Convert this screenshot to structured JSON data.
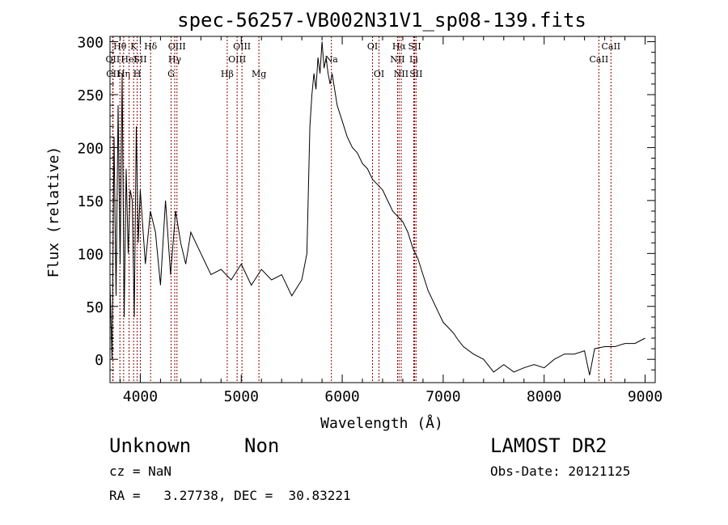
{
  "chart_data": {
    "type": "line",
    "title": "spec-56257-VB002N31V1_sp08-139.fits",
    "xlabel": "Wavelength (Å)",
    "ylabel": "Flux (relative)",
    "xlim": [
      3700,
      9100
    ],
    "ylim": [
      -22,
      305
    ],
    "xticks": [
      4000,
      5000,
      6000,
      7000,
      8000,
      9000
    ],
    "yticks": [
      0,
      50,
      100,
      150,
      200,
      250,
      300
    ],
    "grid": false,
    "line_color": "#000000",
    "marker_color": "#8b0000",
    "spectrum": {
      "x": [
        3700,
        3720,
        3740,
        3760,
        3780,
        3800,
        3820,
        3840,
        3860,
        3880,
        3900,
        3920,
        3940,
        3960,
        3980,
        4000,
        4050,
        4100,
        4150,
        4200,
        4250,
        4300,
        4350,
        4400,
        4450,
        4500,
        4600,
        4700,
        4800,
        4900,
        5000,
        5100,
        5200,
        5300,
        5400,
        5500,
        5600,
        5650,
        5680,
        5700,
        5720,
        5740,
        5760,
        5780,
        5800,
        5820,
        5840,
        5860,
        5880,
        5900,
        5950,
        6000,
        6050,
        6100,
        6150,
        6200,
        6250,
        6300,
        6350,
        6400,
        6450,
        6500,
        6550,
        6600,
        6650,
        6700,
        6750,
        6800,
        6850,
        6900,
        6950,
        7000,
        7050,
        7100,
        7150,
        7200,
        7300,
        7400,
        7500,
        7600,
        7700,
        7800,
        7900,
        8000,
        8100,
        8200,
        8300,
        8400,
        8450,
        8500,
        8600,
        8700,
        8800,
        8900,
        9000
      ],
      "y": [
        70,
        0,
        210,
        60,
        240,
        90,
        270,
        40,
        180,
        100,
        160,
        150,
        40,
        220,
        110,
        160,
        90,
        140,
        120,
        70,
        150,
        80,
        140,
        110,
        90,
        120,
        100,
        80,
        85,
        75,
        90,
        70,
        85,
        75,
        80,
        60,
        75,
        100,
        220,
        250,
        270,
        255,
        285,
        270,
        300,
        275,
        285,
        270,
        260,
        270,
        240,
        225,
        210,
        200,
        195,
        185,
        180,
        170,
        165,
        160,
        150,
        140,
        135,
        130,
        120,
        105,
        95,
        80,
        65,
        55,
        45,
        35,
        30,
        25,
        18,
        12,
        5,
        0,
        -12,
        -5,
        -12,
        -8,
        -5,
        -8,
        0,
        5,
        5,
        8,
        -15,
        10,
        12,
        12,
        15,
        15,
        20
      ]
    },
    "line_markers": [
      {
        "name": "Hθ",
        "x": 3798,
        "row": 1
      },
      {
        "name": "OII",
        "x": 3727,
        "row": 2
      },
      {
        "name": "CII",
        "x": 3730,
        "row": 3
      },
      {
        "name": "Hη",
        "x": 3835,
        "row": 3
      },
      {
        "name": "HeI",
        "x": 3889,
        "row": 2
      },
      {
        "name": "K",
        "x": 3934,
        "row": 1
      },
      {
        "name": "SII",
        "x": 4000,
        "row": 2
      },
      {
        "name": "H",
        "x": 3969,
        "row": 3
      },
      {
        "name": "Hδ",
        "x": 4102,
        "row": 1
      },
      {
        "name": "OIII",
        "x": 4363,
        "row": 1
      },
      {
        "name": "Hγ",
        "x": 4341,
        "row": 2
      },
      {
        "name": "G",
        "x": 4305,
        "row": 3
      },
      {
        "name": "Hβ",
        "x": 4861,
        "row": 3
      },
      {
        "name": "OIII",
        "x": 5007,
        "row": 1
      },
      {
        "name": "OIII",
        "x": 4959,
        "row": 2
      },
      {
        "name": "Mg",
        "x": 5175,
        "row": 3
      },
      {
        "name": "Na",
        "x": 5893,
        "row": 2
      },
      {
        "name": "OI",
        "x": 6300,
        "row": 1
      },
      {
        "name": "OI",
        "x": 6364,
        "row": 3
      },
      {
        "name": "Hα",
        "x": 6563,
        "row": 1
      },
      {
        "name": "SII",
        "x": 6717,
        "row": 1
      },
      {
        "name": "NII",
        "x": 6548,
        "row": 2
      },
      {
        "name": "Li",
        "x": 6708,
        "row": 2
      },
      {
        "name": "NII",
        "x": 6584,
        "row": 3
      },
      {
        "name": "SII",
        "x": 6731,
        "row": 3
      },
      {
        "name": "CaII",
        "x": 8662,
        "row": 1
      },
      {
        "name": "CaII",
        "x": 8542,
        "row": 2
      }
    ]
  },
  "footer": {
    "class_name": "Unknown",
    "subclass": "Non",
    "survey": "LAMOST DR2",
    "cz": "cz = NaN",
    "obs_date": "Obs-Date: 20121125",
    "coords": "RA =   3.27738, DEC =  30.83221"
  }
}
